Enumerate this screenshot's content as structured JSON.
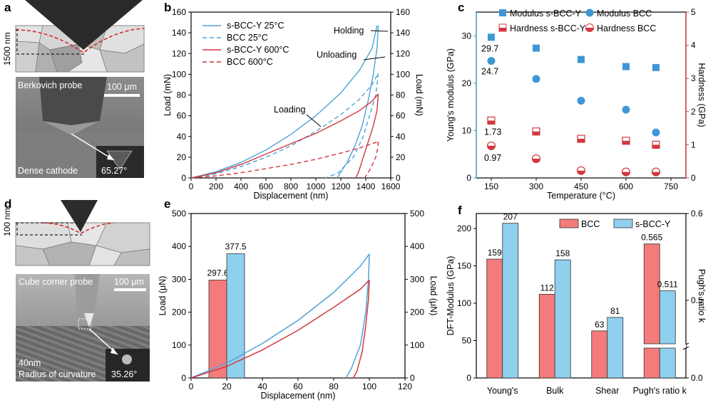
{
  "panels": {
    "a": {
      "letter": "a",
      "depth_label": "1500 nm",
      "probe_label": "Berkovich probe",
      "scale_label": "100 μm",
      "sample_label": "Dense cathode",
      "angle_label": "65.27°"
    },
    "d": {
      "letter": "d",
      "depth_label": "100 nm",
      "probe_label": "Cube corner probe",
      "scale_label": "100 μm",
      "sample_label_1": "40nm",
      "sample_label_2": "Radius of curvature",
      "angle_label": "35.26°"
    }
  },
  "colors": {
    "blue": "#4da3d8",
    "red": "#d2373f",
    "bar_red": "#f47b7b",
    "bar_blue": "#8fd0ee",
    "sq_blue": "#3f97d6"
  },
  "chart_data": [
    {
      "id": "b",
      "letter": "b",
      "type": "line",
      "xlabel": "Displacement (nm)",
      "ylabel": "Load (mN)",
      "ylabel_right": "Load (mN)",
      "xlim": [
        0,
        1600
      ],
      "ylim": [
        0,
        160
      ],
      "xticks": [
        0,
        200,
        400,
        600,
        800,
        1000,
        1200,
        1400,
        1600
      ],
      "yticks": [
        0,
        20,
        40,
        60,
        80,
        100,
        120,
        140,
        160
      ],
      "legend": [
        "s-BCC-Y 25°C",
        "BCC 25°C",
        "s-BCC-Y 600°C",
        "BCC 600°C"
      ],
      "annotations": [
        "Holding",
        "Unloading",
        "Loading"
      ],
      "series": [
        {
          "name": "s-BCC-Y 25°C",
          "color": "blue",
          "dash": false,
          "loading": [
            [
              0,
              0
            ],
            [
              200,
              6
            ],
            [
              400,
              15
            ],
            [
              600,
              27
            ],
            [
              800,
              42
            ],
            [
              1000,
              60
            ],
            [
              1200,
              82
            ],
            [
              1350,
              104
            ],
            [
              1450,
              125
            ],
            [
              1490,
              147
            ]
          ],
          "unloading": [
            [
              1500,
              147
            ],
            [
              1490,
              125
            ],
            [
              1460,
              100
            ],
            [
              1420,
              75
            ],
            [
              1370,
              50
            ],
            [
              1310,
              30
            ],
            [
              1250,
              15
            ],
            [
              1170,
              0
            ]
          ]
        },
        {
          "name": "BCC 25°C",
          "color": "blue",
          "dash": true,
          "loading": [
            [
              0,
              0
            ],
            [
              200,
              4
            ],
            [
              400,
              11
            ],
            [
              600,
              20
            ],
            [
              800,
              31
            ],
            [
              1000,
              45
            ],
            [
              1200,
              61
            ],
            [
              1350,
              76
            ],
            [
              1450,
              90
            ],
            [
              1500,
              101
            ]
          ],
          "unloading": [
            [
              1500,
              101
            ],
            [
              1480,
              80
            ],
            [
              1430,
              60
            ],
            [
              1380,
              40
            ],
            [
              1300,
              20
            ],
            [
              1180,
              5
            ],
            [
              1080,
              0
            ]
          ]
        },
        {
          "name": "s-BCC-Y 600°C",
          "color": "red",
          "dash": false,
          "loading": [
            [
              0,
              0
            ],
            [
              200,
              5
            ],
            [
              400,
              13
            ],
            [
              600,
              23
            ],
            [
              800,
              33
            ],
            [
              1000,
              43
            ],
            [
              1200,
              55
            ],
            [
              1350,
              65
            ],
            [
              1450,
              74
            ],
            [
              1500,
              81
            ]
          ],
          "unloading": [
            [
              1500,
              81
            ],
            [
              1490,
              65
            ],
            [
              1460,
              50
            ],
            [
              1420,
              35
            ],
            [
              1380,
              20
            ],
            [
              1340,
              5
            ],
            [
              1320,
              0
            ]
          ]
        },
        {
          "name": "BCC 600°C",
          "color": "red",
          "dash": true,
          "loading": [
            [
              0,
              0
            ],
            [
              200,
              2
            ],
            [
              400,
              5
            ],
            [
              600,
              9
            ],
            [
              800,
              13
            ],
            [
              1000,
              18
            ],
            [
              1200,
              24
            ],
            [
              1350,
              29
            ],
            [
              1450,
              33
            ],
            [
              1500,
              35
            ]
          ],
          "unloading": [
            [
              1500,
              35
            ],
            [
              1495,
              28
            ],
            [
              1480,
              20
            ],
            [
              1450,
              12
            ],
            [
              1420,
              5
            ],
            [
              1390,
              0
            ]
          ]
        }
      ]
    },
    {
      "id": "c",
      "letter": "c",
      "type": "scatter",
      "xlabel": "Temperature (°C)",
      "ylabel": "Young's modulus (GPa)",
      "ylabel_right": "Hardness (GPa)",
      "xlim": [
        100,
        800
      ],
      "ylim": [
        0,
        35
      ],
      "ylim_right": [
        0,
        5
      ],
      "xticks": [
        150,
        300,
        450,
        600,
        750
      ],
      "yticks": [
        0,
        10,
        20,
        30
      ],
      "yticks_right": [
        0,
        1,
        2,
        3,
        4,
        5
      ],
      "legend": [
        "Modulus s-BCC-Y",
        "Modulus BCC",
        "Hardness s-BCC-Y",
        "Hardness BCC"
      ],
      "x": [
        150,
        300,
        450,
        600,
        700
      ],
      "series": [
        {
          "name": "Modulus s-BCC-Y",
          "axis": "left",
          "values": [
            29.7,
            27.4,
            25.0,
            23.5,
            23.3
          ]
        },
        {
          "name": "Modulus BCC",
          "axis": "left",
          "values": [
            24.7,
            20.9,
            16.3,
            14.4,
            9.6
          ]
        },
        {
          "name": "Hardness s-BCC-Y",
          "axis": "right",
          "values": [
            1.73,
            1.4,
            1.18,
            1.12,
            1.0
          ]
        },
        {
          "name": "Hardness BCC",
          "axis": "right",
          "values": [
            0.97,
            0.58,
            0.22,
            0.18,
            0.18
          ]
        }
      ],
      "data_labels": [
        "29.7",
        "24.7",
        "1.73",
        "0.97"
      ]
    },
    {
      "id": "e",
      "letter": "e",
      "type": "line",
      "xlabel": "Displacement (nm)",
      "ylabel": "Load (μN)",
      "ylabel_right": "Load (μN)",
      "xlim": [
        0,
        120
      ],
      "ylim": [
        0,
        500
      ],
      "xticks": [
        0,
        20,
        40,
        60,
        80,
        100,
        120
      ],
      "yticks": [
        0,
        100,
        200,
        300,
        400,
        500
      ],
      "bars": [
        {
          "name": "BCC",
          "color": "bar_red",
          "x0": 10,
          "x1": 20,
          "value": 297.6,
          "label": "297.6"
        },
        {
          "name": "s-BCC-Y",
          "color": "bar_blue",
          "x0": 20,
          "x1": 30,
          "value": 377.5,
          "label": "377.5"
        }
      ],
      "series": [
        {
          "name": "s-BCC-Y",
          "color": "blue",
          "loading": [
            [
              0,
              0
            ],
            [
              20,
              45
            ],
            [
              40,
              105
            ],
            [
              60,
              175
            ],
            [
              80,
              260
            ],
            [
              95,
              340
            ],
            [
              100,
              377
            ]
          ],
          "unloading": [
            [
              100,
              377
            ],
            [
              99.5,
              300
            ],
            [
              98,
              200
            ],
            [
              95,
              100
            ],
            [
              90,
              30
            ],
            [
              87,
              0
            ]
          ]
        },
        {
          "name": "BCC",
          "color": "red",
          "loading": [
            [
              0,
              0
            ],
            [
              20,
              35
            ],
            [
              40,
              85
            ],
            [
              60,
              145
            ],
            [
              80,
              215
            ],
            [
              95,
              270
            ],
            [
              100,
              298
            ]
          ],
          "unloading": [
            [
              100,
              298
            ],
            [
              99.5,
              240
            ],
            [
              98,
              160
            ],
            [
              96,
              80
            ],
            [
              93,
              20
            ],
            [
              91,
              0
            ]
          ]
        }
      ]
    },
    {
      "id": "f",
      "letter": "f",
      "type": "bar",
      "ylabel": "DFT-Modulus (GPa)",
      "ylabel_right": "Pugh's ratio k",
      "categories": [
        "Young's",
        "Bulk",
        "Shear",
        "Pugh's ratio k"
      ],
      "ylim": [
        0,
        220
      ],
      "yticks": [
        0,
        50,
        100,
        150,
        200
      ],
      "ylim_right_segments": [
        [
          0,
          0.1
        ],
        [
          0.45,
          0.6
        ]
      ],
      "yticks_right": [
        "0.0",
        "0.5",
        "0.6"
      ],
      "series": [
        {
          "name": "BCC",
          "color": "bar_red",
          "values": [
            159,
            112,
            63,
            0.565
          ],
          "labels": [
            "159",
            "112",
            "63",
            "0.565"
          ]
        },
        {
          "name": "s-BCC-Y",
          "color": "bar_blue",
          "values": [
            207,
            158,
            81,
            0.511
          ],
          "labels": [
            "207",
            "158",
            "81",
            "0.511"
          ]
        }
      ]
    }
  ]
}
